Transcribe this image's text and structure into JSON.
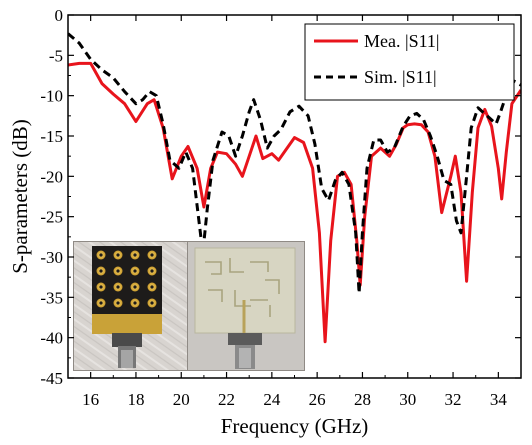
{
  "chart_data": {
    "type": "line",
    "xlabel": "Frequency (GHz)",
    "ylabel": "S-parameters (dB)",
    "xlim": [
      15,
      35
    ],
    "ylim": [
      -45,
      0
    ],
    "xticks": [
      16,
      18,
      20,
      22,
      24,
      26,
      28,
      30,
      32,
      34
    ],
    "yticks": [
      0,
      -5,
      -10,
      -15,
      -20,
      -25,
      -30,
      -35,
      -40,
      -45
    ],
    "grid": false,
    "legend_position": "top-right",
    "inset": "photographs of fabricated antenna prototype (front and back views)",
    "series": [
      {
        "name": "Mea. |S11|",
        "color": "#e8141c",
        "style": "solid",
        "points": [
          [
            15,
            -6.2
          ],
          [
            15.5,
            -6.0
          ],
          [
            16,
            -6.0
          ],
          [
            16.5,
            -8.5
          ],
          [
            17,
            -9.8
          ],
          [
            17.5,
            -11
          ],
          [
            18,
            -13.2
          ],
          [
            18.5,
            -11
          ],
          [
            18.8,
            -10.5
          ],
          [
            19.2,
            -14
          ],
          [
            19.6,
            -20.3
          ],
          [
            20,
            -17.5
          ],
          [
            20.3,
            -16.3
          ],
          [
            20.7,
            -19
          ],
          [
            21,
            -23.8
          ],
          [
            21.3,
            -19
          ],
          [
            21.6,
            -17
          ],
          [
            22,
            -17.2
          ],
          [
            22.4,
            -18.5
          ],
          [
            22.7,
            -20
          ],
          [
            23,
            -17.5
          ],
          [
            23.3,
            -15
          ],
          [
            23.6,
            -17.8
          ],
          [
            24,
            -17.2
          ],
          [
            24.3,
            -18
          ],
          [
            24.6,
            -16.8
          ],
          [
            25,
            -15.2
          ],
          [
            25.4,
            -15.8
          ],
          [
            25.8,
            -19
          ],
          [
            26.1,
            -27
          ],
          [
            26.35,
            -40.5
          ],
          [
            26.6,
            -28
          ],
          [
            26.9,
            -20
          ],
          [
            27.2,
            -19.5
          ],
          [
            27.5,
            -21
          ],
          [
            27.75,
            -28
          ],
          [
            27.9,
            -33.5
          ],
          [
            28.1,
            -25
          ],
          [
            28.4,
            -17.5
          ],
          [
            28.8,
            -16.5
          ],
          [
            29.2,
            -17.5
          ],
          [
            29.5,
            -16
          ],
          [
            29.8,
            -14
          ],
          [
            30,
            -13.6
          ],
          [
            30.3,
            -13.5
          ],
          [
            30.6,
            -13.6
          ],
          [
            30.9,
            -14.5
          ],
          [
            31.2,
            -17.5
          ],
          [
            31.5,
            -24.5
          ],
          [
            31.9,
            -20
          ],
          [
            32.1,
            -17.5
          ],
          [
            32.35,
            -22
          ],
          [
            32.6,
            -33
          ],
          [
            32.85,
            -22
          ],
          [
            33.1,
            -14
          ],
          [
            33.4,
            -11.7
          ],
          [
            33.7,
            -13.8
          ],
          [
            34,
            -19
          ],
          [
            34.15,
            -22.8
          ],
          [
            34.35,
            -17
          ],
          [
            34.6,
            -11
          ],
          [
            35,
            -9.3
          ]
        ]
      },
      {
        "name": "Sim. |S11|",
        "color": "#000000",
        "style": "dashed",
        "points": [
          [
            15,
            -2.3
          ],
          [
            15.5,
            -3.5
          ],
          [
            16,
            -5.5
          ],
          [
            16.5,
            -6.8
          ],
          [
            17,
            -7.8
          ],
          [
            17.5,
            -9.5
          ],
          [
            18,
            -11
          ],
          [
            18.3,
            -10.5
          ],
          [
            18.6,
            -9.5
          ],
          [
            18.9,
            -10
          ],
          [
            19.2,
            -13.5
          ],
          [
            19.5,
            -18
          ],
          [
            19.9,
            -19
          ],
          [
            20.2,
            -17
          ],
          [
            20.5,
            -19
          ],
          [
            20.8,
            -26
          ],
          [
            20.95,
            -29.5
          ],
          [
            21.15,
            -24
          ],
          [
            21.4,
            -18
          ],
          [
            21.8,
            -14.5
          ],
          [
            22.1,
            -15
          ],
          [
            22.4,
            -17.5
          ],
          [
            22.7,
            -15
          ],
          [
            23,
            -12
          ],
          [
            23.2,
            -10.5
          ],
          [
            23.5,
            -13
          ],
          [
            23.8,
            -16.5
          ],
          [
            24.1,
            -15
          ],
          [
            24.4,
            -14.2
          ],
          [
            24.8,
            -12
          ],
          [
            25.2,
            -11.3
          ],
          [
            25.6,
            -12.5
          ],
          [
            25.9,
            -16
          ],
          [
            26.2,
            -21.5
          ],
          [
            26.5,
            -23
          ],
          [
            26.8,
            -20.5
          ],
          [
            27.1,
            -19.5
          ],
          [
            27.4,
            -21
          ],
          [
            27.7,
            -27
          ],
          [
            27.85,
            -34.5
          ],
          [
            28,
            -27
          ],
          [
            28.2,
            -19
          ],
          [
            28.5,
            -15.5
          ],
          [
            28.8,
            -15.5
          ],
          [
            29.1,
            -17
          ],
          [
            29.4,
            -16.5
          ],
          [
            29.8,
            -13.8
          ],
          [
            30.1,
            -12.5
          ],
          [
            30.4,
            -12.2
          ],
          [
            30.7,
            -13
          ],
          [
            31,
            -15
          ],
          [
            31.3,
            -17.5
          ],
          [
            31.6,
            -20.5
          ],
          [
            31.9,
            -21
          ],
          [
            32.15,
            -25.5
          ],
          [
            32.35,
            -27
          ],
          [
            32.6,
            -20
          ],
          [
            32.8,
            -14
          ],
          [
            33.1,
            -11.5
          ],
          [
            33.5,
            -12.5
          ],
          [
            33.9,
            -13.5
          ],
          [
            34.1,
            -12
          ],
          [
            34.4,
            -9.5
          ],
          [
            34.7,
            -8.2
          ],
          [
            35,
            -8.7
          ]
        ]
      }
    ]
  }
}
